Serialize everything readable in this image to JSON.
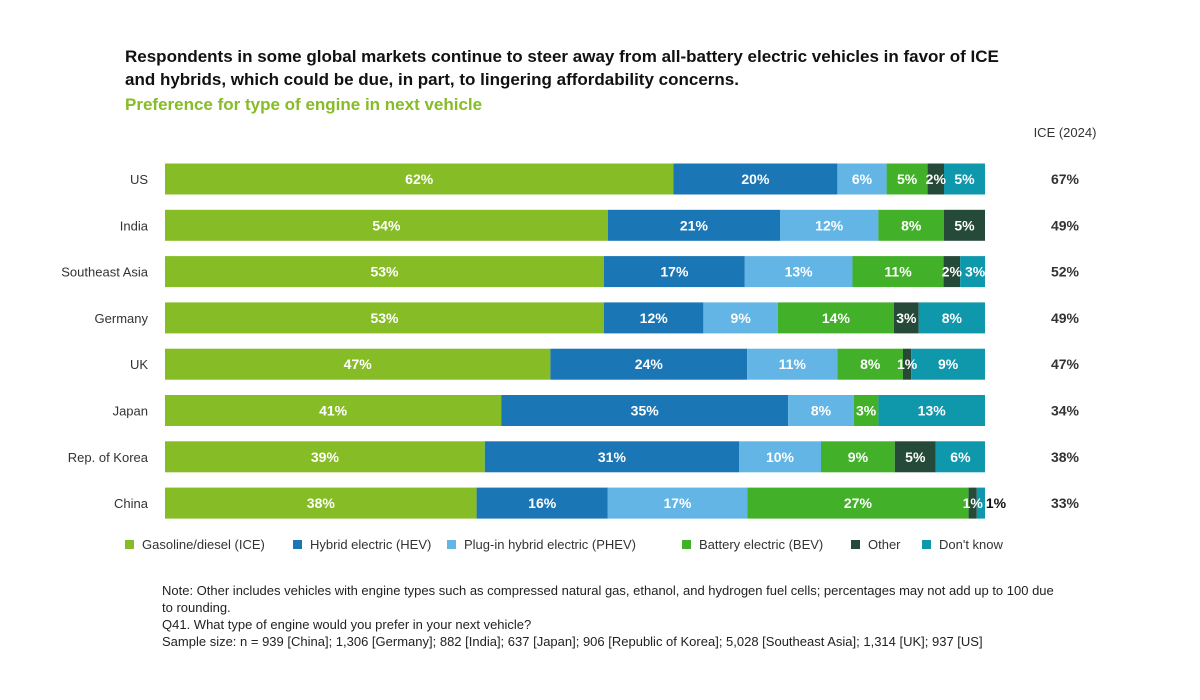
{
  "title": "Respondents in some global markets continue to steer away from all-battery electric vehicles in favor of ICE and hybrids, which could be due, in part, to lingering affordability concerns.",
  "subtitle": "Preference for type of engine in next vehicle",
  "ice_column_header": "ICE (2024)",
  "colors": {
    "ice": "#86bc25",
    "hev": "#1b76b5",
    "phev": "#62b5e5",
    "bev": "#43b02a",
    "other": "#264a3a",
    "dontknow": "#0f97ab"
  },
  "chart_data": {
    "type": "bar",
    "orientation": "horizontal",
    "stacked": true,
    "normalized": true,
    "categories": [
      "US",
      "India",
      "Southeast Asia",
      "Germany",
      "UK",
      "Japan",
      "Rep. of Korea",
      "China"
    ],
    "series": [
      {
        "name": "Gasoline/diesel (ICE)",
        "key": "ice",
        "values": [
          62,
          54,
          53,
          53,
          47,
          41,
          39,
          38
        ]
      },
      {
        "name": "Hybrid electric (HEV)",
        "key": "hev",
        "values": [
          20,
          21,
          17,
          12,
          24,
          35,
          31,
          16
        ]
      },
      {
        "name": "Plug-in hybrid electric (PHEV)",
        "key": "phev",
        "values": [
          6,
          12,
          13,
          9,
          11,
          8,
          10,
          17
        ]
      },
      {
        "name": "Battery electric (BEV)",
        "key": "bev",
        "values": [
          5,
          8,
          11,
          14,
          8,
          3,
          9,
          27
        ]
      },
      {
        "name": "Other",
        "key": "other",
        "values": [
          2,
          5,
          2,
          3,
          1,
          0,
          5,
          1
        ]
      },
      {
        "name": "Don't know",
        "key": "dontknow",
        "values": [
          5,
          null,
          3,
          8,
          9,
          13,
          6,
          1
        ]
      }
    ],
    "ice_2024": {
      "label": "ICE (2024)",
      "values": [
        67,
        49,
        52,
        49,
        47,
        34,
        38,
        33
      ]
    },
    "value_format": "percent",
    "legend_placement": "bottom",
    "grid": false
  },
  "notes": [
    "Note: Other includes vehicles with engine types such as compressed natural gas, ethanol, and hydrogen fuel cells; percentages may not add up to 100 due to rounding.",
    "Q41. What type of engine would you prefer in your next vehicle?",
    "Sample size: n = 939 [China]; 1,306 [Germany]; 882 [India]; 637 [Japan]; 906 [Republic of Korea]; 5,028 [Southeast Asia]; 1,314 [UK]; 937 [US]"
  ]
}
